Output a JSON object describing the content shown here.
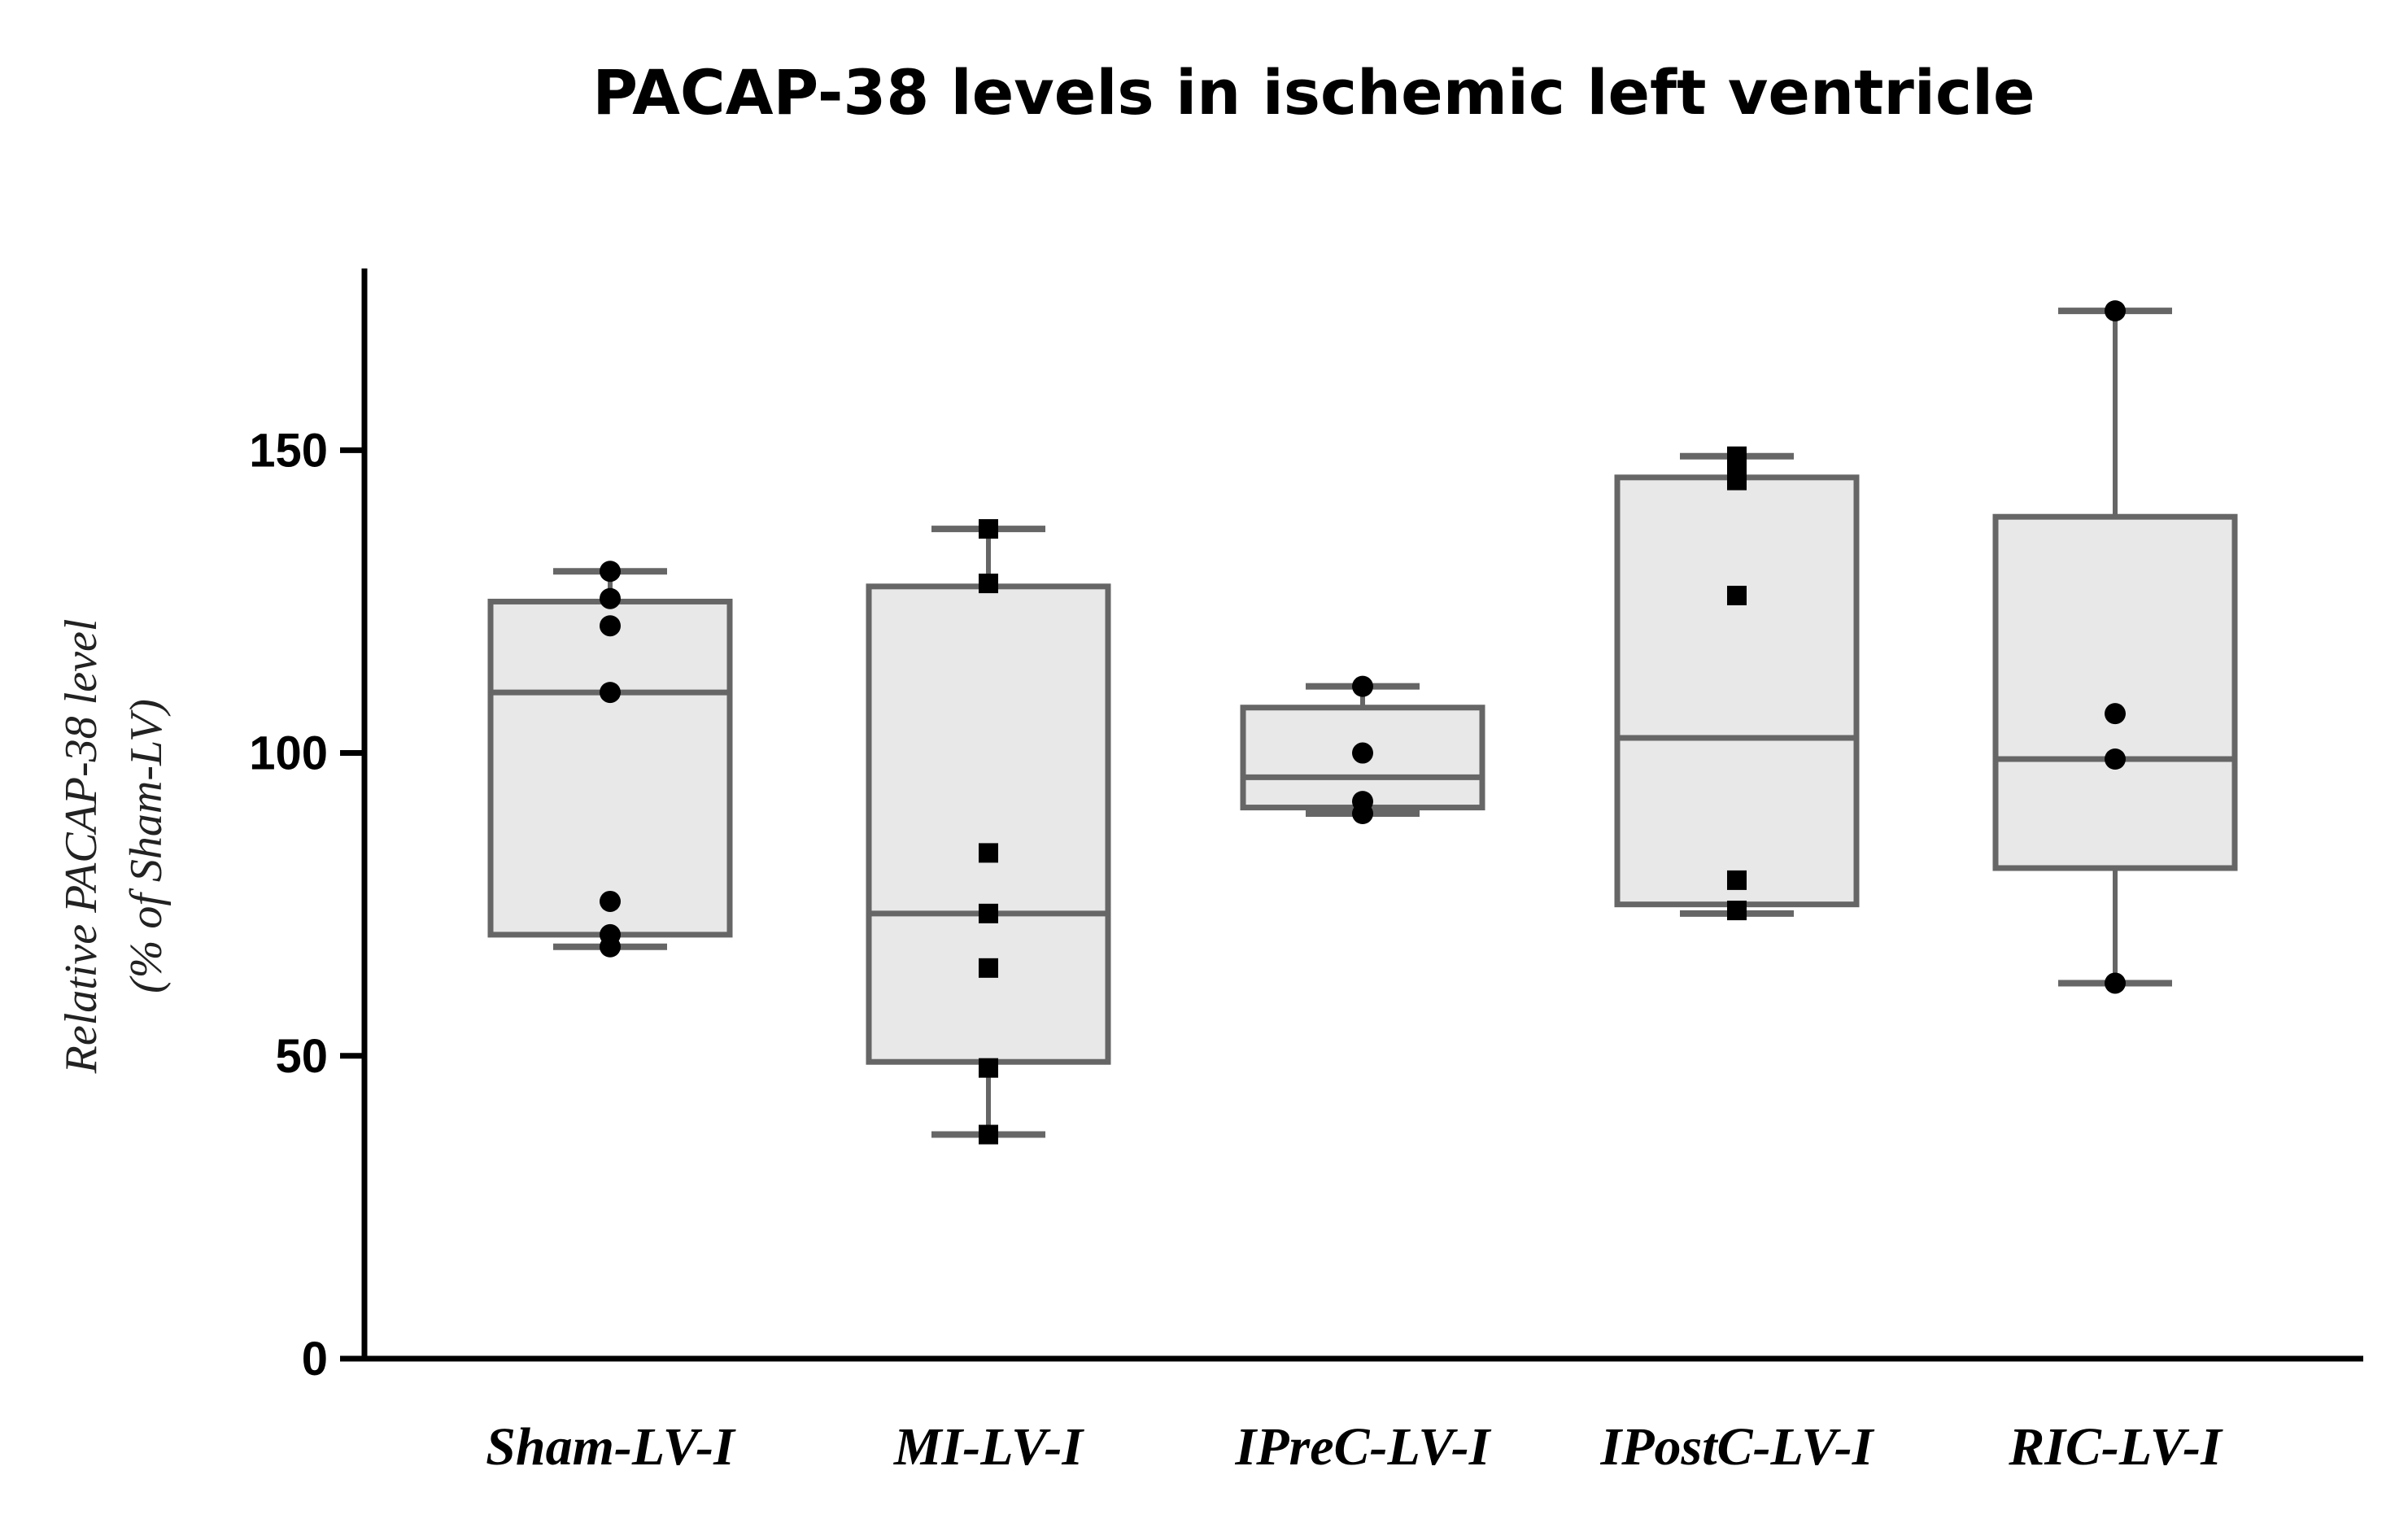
{
  "chart_data": {
    "type": "box",
    "title": "PACAP-38 levels in ischemic left ventricle",
    "xlabel": "",
    "ylabel": [
      "Relative PACAP-38 level",
      "(% of Sham-LV)"
    ],
    "ylim": [
      0,
      180
    ],
    "yticks": [
      0,
      50,
      100,
      150
    ],
    "grid": false,
    "legend": "none",
    "colors": {
      "box_fill": "#e8e8e8",
      "box_stroke": "#666666",
      "axis": "#000000",
      "point": "#000000"
    },
    "categories": [
      "Sham-LV-I",
      "MI-LV-I",
      "IPreC-LV-I",
      "IPostC-LV-I",
      "RIC-LV-I"
    ],
    "groups": [
      {
        "name": "Sham-LV-I",
        "min": 68,
        "q1": 70,
        "median": 110,
        "q3": 125,
        "max": 130,
        "marker": "circle",
        "points": [
          130,
          125.5,
          121,
          110,
          75.5,
          70,
          68
        ]
      },
      {
        "name": "MI-LV-I",
        "min": 37,
        "q1": 49,
        "median": 73.5,
        "q3": 127.5,
        "max": 137,
        "marker": "square",
        "points": [
          137,
          128,
          83.5,
          73.5,
          64.5,
          48,
          37
        ]
      },
      {
        "name": "IPreC-LV-I",
        "min": 90,
        "q1": 91,
        "median": 96,
        "q3": 107.5,
        "max": 111,
        "marker": "circle",
        "points": [
          111,
          100,
          92,
          90
        ]
      },
      {
        "name": "IPostC-LV-I",
        "min": 73.5,
        "q1": 75,
        "median": 102.5,
        "q3": 145.5,
        "max": 149,
        "marker": "square",
        "points": [
          149,
          147,
          145,
          126,
          79,
          74
        ]
      },
      {
        "name": "RIC-LV-I",
        "min": 62,
        "q1": 81,
        "median": 99,
        "q3": 139,
        "max": 173,
        "marker": "circle",
        "points": [
          173,
          106.5,
          99,
          62
        ]
      }
    ]
  }
}
